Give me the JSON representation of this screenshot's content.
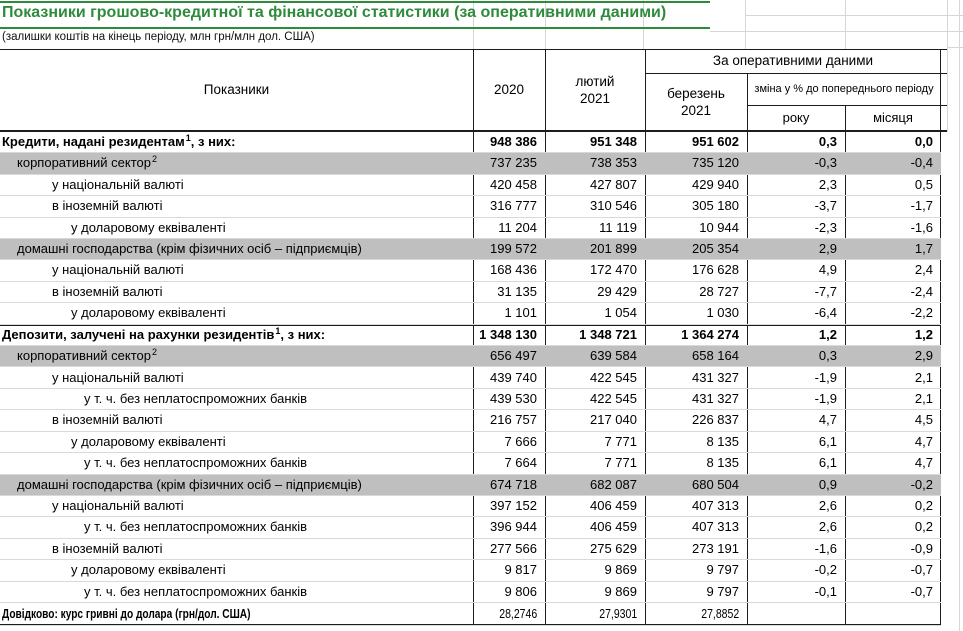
{
  "title": "Показники грошово-кредитної та фінансової статистики (за оперативними даними)",
  "subtitle": "(залишки коштів на кінець періоду, млн грн/млн дол. США)",
  "colors": {
    "accent_green": "#2e8b3c",
    "highlight_gray": "#bfbfbf"
  },
  "table": {
    "header": {
      "indicators": "Показники",
      "year_2020": "2020",
      "feb_2021": "лютий\n2021",
      "operational": "За оперативними даними",
      "mar_2021": "березень\n2021",
      "change_pct": "зміна у % до попереднього періоду",
      "change_year": "року",
      "change_month": "місяця"
    },
    "rows": [
      {
        "label": "Кредити, надані резидентам",
        "sup": "1",
        "label2": ", з них:",
        "level": 0,
        "style": "section",
        "values": [
          "948 386",
          "951 348",
          "951 602",
          "0,3",
          "0,0"
        ]
      },
      {
        "label": "корпоративний сектор",
        "sup": "2",
        "label2": "",
        "level": 1,
        "style": "gray",
        "values": [
          "737 235",
          "738 353",
          "735 120",
          "-0,3",
          "-0,4"
        ]
      },
      {
        "label": "у національній валюті",
        "sup": "",
        "label2": "",
        "level": 2,
        "style": "normal",
        "values": [
          "420 458",
          "427 807",
          "429 940",
          "2,3",
          "0,5"
        ]
      },
      {
        "label": "в іноземній валюті",
        "sup": "",
        "label2": "",
        "level": 2,
        "style": "normal",
        "values": [
          "316 777",
          "310 546",
          "305 180",
          "-3,7",
          "-1,7"
        ]
      },
      {
        "label": "у доларовому еквіваленті",
        "sup": "",
        "label2": "",
        "level": 3,
        "style": "normal",
        "values": [
          "11 204",
          "11 119",
          "10 944",
          "-2,3",
          "-1,6"
        ]
      },
      {
        "label": "домашні господарства (крім фізичних осіб – підприємців)",
        "sup": "",
        "label2": "",
        "level": 1,
        "style": "gray",
        "values": [
          "199 572",
          "201 899",
          "205 354",
          "2,9",
          "1,7"
        ]
      },
      {
        "label": "у національній валюті",
        "sup": "",
        "label2": "",
        "level": 2,
        "style": "normal",
        "values": [
          "168 436",
          "172 470",
          "176 628",
          "4,9",
          "2,4"
        ]
      },
      {
        "label": "в іноземній валюті",
        "sup": "",
        "label2": "",
        "level": 2,
        "style": "normal",
        "values": [
          "31 135",
          "29 429",
          "28 727",
          "-7,7",
          "-2,4"
        ]
      },
      {
        "label": "у доларовому еквіваленті",
        "sup": "",
        "label2": "",
        "level": 3,
        "style": "normal",
        "values": [
          "1 101",
          "1 054",
          "1 030",
          "-6,4",
          "-2,2"
        ]
      },
      {
        "label": "Депозити, залучені на рахунки резидентів",
        "sup": "1",
        "label2": ", з них:",
        "level": 0,
        "style": "section",
        "values": [
          "1 348 130",
          "1 348 721",
          "1 364 274",
          "1,2",
          "1,2"
        ]
      },
      {
        "label": "корпоративний сектор",
        "sup": "2",
        "label2": "",
        "level": 1,
        "style": "gray",
        "values": [
          "656 497",
          "639 584",
          "658 164",
          "0,3",
          "2,9"
        ]
      },
      {
        "label": "у національній валюті",
        "sup": "",
        "label2": "",
        "level": 2,
        "style": "normal",
        "values": [
          "439 740",
          "422 545",
          "431 327",
          "-1,9",
          "2,1"
        ]
      },
      {
        "label": "у т. ч. без неплатоспроможних банків",
        "sup": "",
        "label2": "",
        "level": 4,
        "style": "normal",
        "values": [
          "439 530",
          "422 545",
          "431 327",
          "-1,9",
          "2,1"
        ]
      },
      {
        "label": "в іноземній валюті",
        "sup": "",
        "label2": "",
        "level": 2,
        "style": "normal",
        "values": [
          "216 757",
          "217 040",
          "226 837",
          "4,7",
          "4,5"
        ]
      },
      {
        "label": "у доларовому еквіваленті",
        "sup": "",
        "label2": "",
        "level": 3,
        "style": "normal",
        "values": [
          "7 666",
          "7 771",
          "8 135",
          "6,1",
          "4,7"
        ]
      },
      {
        "label": "у т. ч. без неплатоспроможних банків",
        "sup": "",
        "label2": "",
        "level": 4,
        "style": "normal",
        "values": [
          "7 664",
          "7 771",
          "8 135",
          "6,1",
          "4,7"
        ]
      },
      {
        "label": "домашні господарства (крім фізичних осіб – підприємців)",
        "sup": "",
        "label2": "",
        "level": 1,
        "style": "gray",
        "values": [
          "674 718",
          "682 087",
          "680 504",
          "0,9",
          "-0,2"
        ]
      },
      {
        "label": "у національній валюті",
        "sup": "",
        "label2": "",
        "level": 2,
        "style": "normal",
        "values": [
          "397 152",
          "406 459",
          "407 313",
          "2,6",
          "0,2"
        ]
      },
      {
        "label": "у т. ч. без неплатоспроможних банків",
        "sup": "",
        "label2": "",
        "level": 4,
        "style": "normal",
        "values": [
          "396 944",
          "406 459",
          "407 313",
          "2,6",
          "0,2"
        ]
      },
      {
        "label": "в іноземній валюті",
        "sup": "",
        "label2": "",
        "level": 2,
        "style": "normal",
        "values": [
          "277 566",
          "275 629",
          "273 191",
          "-1,6",
          "-0,9"
        ]
      },
      {
        "label": "у доларовому еквіваленті",
        "sup": "",
        "label2": "",
        "level": 3,
        "style": "normal",
        "values": [
          "9 817",
          "9 869",
          "9 797",
          "-0,2",
          "-0,7"
        ]
      },
      {
        "label": "у т. ч. без неплатоспроможних банків",
        "sup": "",
        "label2": "",
        "level": 4,
        "style": "normal",
        "values": [
          "9 806",
          "9 869",
          "9 797",
          "-0,1",
          "-0,7"
        ]
      },
      {
        "label": "Довідково: курс гривні до долара (грн/дол. США)",
        "sup": "",
        "label2": "",
        "level": 0,
        "style": "footer",
        "values": [
          "28,2746",
          "27,9301",
          "27,8852",
          "",
          ""
        ]
      }
    ]
  }
}
